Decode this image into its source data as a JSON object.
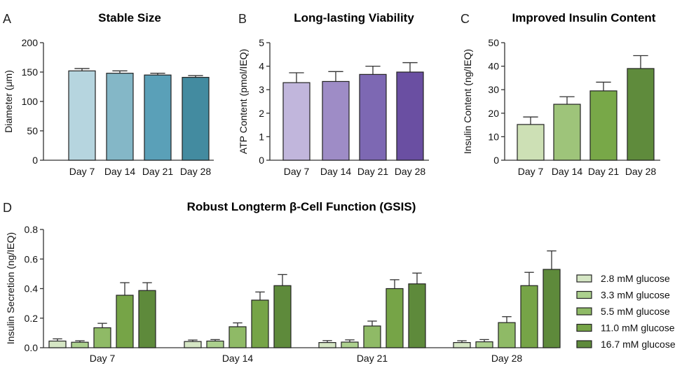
{
  "chart_data": [
    {
      "panel": "A",
      "type": "bar",
      "title": "Stable Size",
      "ylabel": "Diameter (μm)",
      "categories": [
        "Day 7",
        "Day 14",
        "Day 21",
        "Day 28"
      ],
      "values": [
        152,
        148,
        145,
        141
      ],
      "error_upper": [
        156,
        152,
        148,
        144
      ],
      "ylim": [
        0,
        200
      ],
      "yticks": [
        0,
        50,
        100,
        150,
        200
      ],
      "colors": [
        "#b6d5df",
        "#84b7c7",
        "#5aa0b8",
        "#438ba0"
      ],
      "grid": false
    },
    {
      "panel": "B",
      "type": "bar",
      "title": "Long-lasting Viability",
      "ylabel": "ATP Content (pmol/IEQ)",
      "categories": [
        "Day 7",
        "Day 14",
        "Day 21",
        "Day 28"
      ],
      "values": [
        3.3,
        3.35,
        3.65,
        3.75
      ],
      "error_upper": [
        3.72,
        3.77,
        4.0,
        4.15
      ],
      "ylim": [
        0,
        5
      ],
      "yticks": [
        0,
        1,
        2,
        3,
        4,
        5
      ],
      "colors": [
        "#c1b6dc",
        "#9e8cc6",
        "#7d68b3",
        "#6a4fa2"
      ],
      "grid": false
    },
    {
      "panel": "C",
      "type": "bar",
      "title": "Improved Insulin Content",
      "ylabel": "Insulin Content (ng/IEQ)",
      "categories": [
        "Day 7",
        "Day 14",
        "Day 21",
        "Day 28"
      ],
      "values": [
        15.2,
        23.8,
        29.5,
        39.0
      ],
      "error_upper": [
        18.4,
        27.0,
        33.2,
        44.5
      ],
      "ylim": [
        0,
        50
      ],
      "yticks": [
        0,
        10,
        20,
        30,
        40,
        50
      ],
      "colors": [
        "#cde0b5",
        "#9ec47a",
        "#78a848",
        "#5f8b3c"
      ],
      "grid": false
    },
    {
      "panel": "D",
      "type": "bar",
      "title": "Robust Longterm β-Cell Function (GSIS)",
      "ylabel": "Insulin Secretion (ng/IEQ)",
      "categories": [
        "Day 7",
        "Day 14",
        "Day 21",
        "Day 28"
      ],
      "ylim": [
        0,
        0.8
      ],
      "yticks": [
        "0.0",
        "0.2",
        "0.4",
        "0.6",
        "0.8"
      ],
      "legend_position": "right",
      "grid": false,
      "series": [
        {
          "name": "2.8 mM glucose",
          "color": "#d5e6c4",
          "values": [
            0.045,
            0.042,
            0.035,
            0.035
          ],
          "error_upper": [
            0.06,
            0.052,
            0.048,
            0.047
          ]
        },
        {
          "name": "3.3 mM glucose",
          "color": "#acd08e",
          "values": [
            0.037,
            0.045,
            0.038,
            0.04
          ],
          "error_upper": [
            0.047,
            0.055,
            0.053,
            0.055
          ]
        },
        {
          "name": "5.5 mM glucose",
          "color": "#8fba66",
          "values": [
            0.135,
            0.142,
            0.147,
            0.17
          ],
          "error_upper": [
            0.165,
            0.168,
            0.18,
            0.21
          ]
        },
        {
          "name": "11.0 mM glucose",
          "color": "#76a447",
          "values": [
            0.355,
            0.322,
            0.4,
            0.42
          ],
          "error_upper": [
            0.44,
            0.377,
            0.46,
            0.51
          ]
        },
        {
          "name": "16.7 mM glucose",
          "color": "#5e8a3b",
          "values": [
            0.387,
            0.42,
            0.432,
            0.53
          ],
          "error_upper": [
            0.44,
            0.495,
            0.505,
            0.655
          ]
        }
      ]
    }
  ]
}
